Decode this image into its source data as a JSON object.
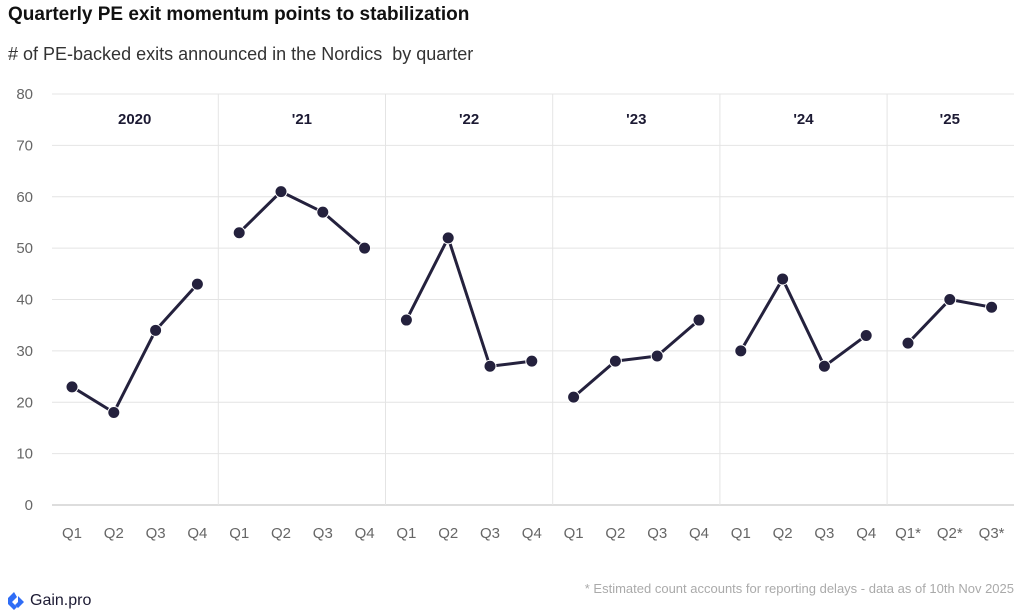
{
  "chart_data": {
    "type": "line",
    "title": "Quarterly PE exit momentum points to stabilization",
    "subtitle": "# of PE-backed exits announced in the Nordics  by quarter",
    "ylim": [
      0,
      80
    ],
    "yticks": [
      0,
      10,
      20,
      30,
      40,
      50,
      60,
      70,
      80
    ],
    "grid": true,
    "groups": [
      {
        "label": "2020",
        "quarters": [
          "Q1",
          "Q2",
          "Q3",
          "Q4"
        ],
        "values": [
          23,
          18,
          34,
          43
        ]
      },
      {
        "label": "'21",
        "quarters": [
          "Q1",
          "Q2",
          "Q3",
          "Q4"
        ],
        "values": [
          53,
          61,
          57,
          50
        ]
      },
      {
        "label": "'22",
        "quarters": [
          "Q1",
          "Q2",
          "Q3",
          "Q4"
        ],
        "values": [
          36,
          52,
          27,
          28
        ]
      },
      {
        "label": "'23",
        "quarters": [
          "Q1",
          "Q2",
          "Q3",
          "Q4"
        ],
        "values": [
          21,
          28,
          29,
          36
        ]
      },
      {
        "label": "'24",
        "quarters": [
          "Q1",
          "Q2",
          "Q3",
          "Q4"
        ],
        "values": [
          30,
          44,
          27,
          33
        ]
      },
      {
        "label": "'25",
        "quarters": [
          "Q1*",
          "Q2*",
          "Q3*"
        ],
        "values": [
          31.5,
          40,
          38.5
        ]
      }
    ],
    "series_color": "#24213d"
  },
  "footnote": "* Estimated count accounts for reporting delays - data as of 10th Nov 2025",
  "brand": {
    "name": "Gain.pro",
    "color": "#2f6df6"
  }
}
